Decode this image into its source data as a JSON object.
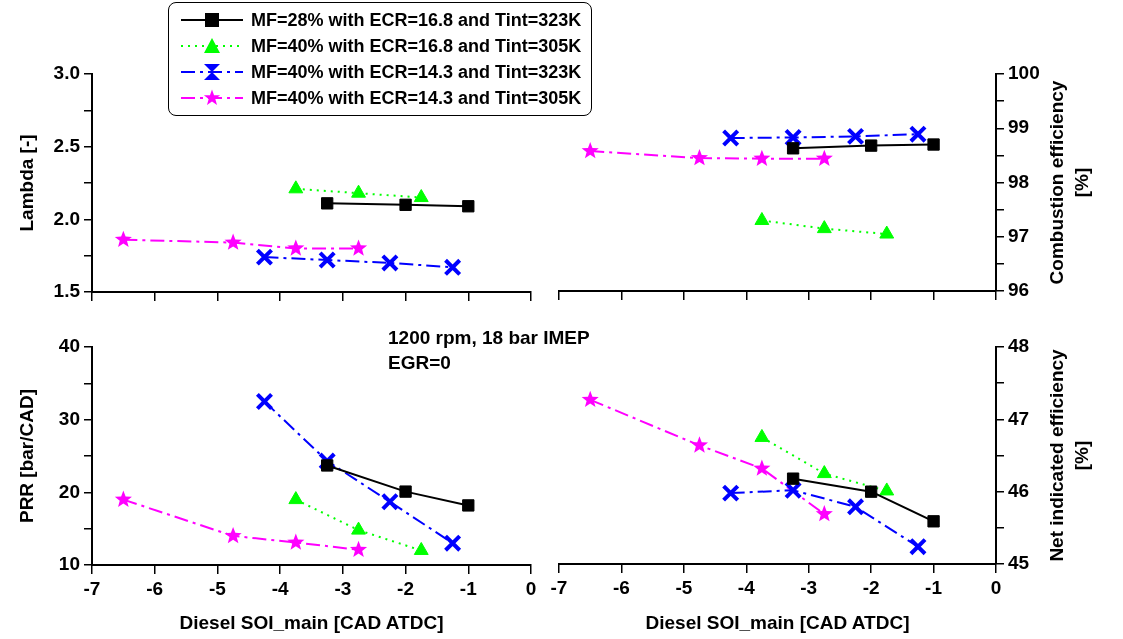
{
  "chart_data": [
    {
      "type": "line",
      "ylabel": "Lambda [-]",
      "xlim": [
        -7,
        0
      ],
      "xticks": [
        -7,
        -6,
        -5,
        -4,
        -3,
        -2,
        -1,
        0
      ],
      "ylim": [
        1.5,
        3.0
      ],
      "yticks": [
        1.5,
        {
          "value": 1.75,
          "label": null
        },
        {
          "value": 2,
          "label": "2.0"
        },
        {
          "value": 2.25,
          "label": null
        },
        2.5,
        {
          "value": 2.75,
          "label": null
        },
        {
          "value": 3,
          "label": "3.0"
        }
      ],
      "tick_labels": "y",
      "grid": false,
      "legend": "top",
      "series": [
        {
          "name": "MF=28% with ECR=16.8 and Tint=323K",
          "color": "#000000",
          "marker": "square",
          "line_style": "solid",
          "x": [
            -3.25,
            -2,
            -1
          ],
          "values": [
            2.11,
            2.1,
            2.09
          ]
        },
        {
          "name": "MF=40% with ECR=16.8 and Tint=305K",
          "color": "#00ff00",
          "marker": "triangle",
          "line_style": "dotted",
          "x": [
            -3.75,
            -2.75,
            -1.75
          ],
          "values": [
            2.21,
            2.18,
            2.15
          ]
        },
        {
          "name": "MF=40% with ECR=14.3 and Tint=323K",
          "color": "#0000ff",
          "marker": "cross",
          "line_style": "dashed",
          "x": [
            -4.25,
            -3.25,
            -2.25,
            -1.25
          ],
          "values": [
            1.74,
            1.72,
            1.7,
            1.67
          ]
        },
        {
          "name": "MF=40% with ECR=14.3 and Tint=305K",
          "color": "#ff00ff",
          "marker": "star",
          "line_style": "dashed",
          "x": [
            -6.5,
            -4.75,
            -3.75,
            -2.75
          ],
          "values": [
            1.86,
            1.84,
            1.8,
            1.8
          ]
        }
      ]
    },
    {
      "type": "line",
      "ylabel": "Combustion efficiency\n[%]",
      "xlim": [
        -7,
        0
      ],
      "xticks": [
        -7,
        -6,
        -5,
        -4,
        -3,
        -2,
        -1,
        0
      ],
      "ylim": [
        96,
        100
      ],
      "yticks": [
        96,
        {
          "value": 96.5,
          "label": null
        },
        97,
        {
          "value": 97.5,
          "label": null
        },
        98,
        {
          "value": 98.5,
          "label": null
        },
        99,
        {
          "value": 99.5,
          "label": null
        },
        100
      ],
      "tick_labels": "y",
      "grid": false,
      "series": [
        {
          "color": "#000000",
          "marker": "square",
          "line_style": "solid",
          "x": [
            -3.25,
            -2,
            -1
          ],
          "values": [
            98.63,
            98.68,
            98.7
          ]
        },
        {
          "color": "#00ff00",
          "marker": "triangle",
          "line_style": "dotted",
          "x": [
            -3.75,
            -2.75,
            -1.75
          ],
          "values": [
            97.3,
            97.15,
            97.05
          ]
        },
        {
          "color": "#0000ff",
          "marker": "cross",
          "line_style": "dashed",
          "x": [
            -4.25,
            -3.25,
            -2.25,
            -1.25
          ],
          "values": [
            98.82,
            98.83,
            98.85,
            98.89
          ]
        },
        {
          "color": "#ff00ff",
          "marker": "star",
          "line_style": "dashed",
          "x": [
            -6.5,
            -4.75,
            -3.75,
            -2.75
          ],
          "values": [
            98.58,
            98.45,
            98.44,
            98.44
          ]
        }
      ]
    },
    {
      "type": "line",
      "xlabel": "Diesel SOI_main [CAD ATDC]",
      "ylabel": "PRR [bar/CAD]",
      "annotations": [
        "1200 rpm, 18 bar IMEP",
        "EGR=0"
      ],
      "xlim": [
        -7,
        0
      ],
      "xticks": [
        -7,
        -6,
        -5,
        -4,
        -3,
        -2,
        -1,
        0
      ],
      "ylim": [
        10,
        40
      ],
      "yticks": [
        10,
        {
          "value": 15,
          "label": null
        },
        20,
        {
          "value": 25,
          "label": null
        },
        30,
        {
          "value": 35,
          "label": null
        },
        40
      ],
      "grid": false,
      "series": [
        {
          "color": "#000000",
          "marker": "square",
          "line_style": "solid",
          "x": [
            -3.25,
            -2,
            -1
          ],
          "values": [
            23.7,
            20.1,
            18.2
          ]
        },
        {
          "color": "#00ff00",
          "marker": "triangle",
          "line_style": "dotted",
          "x": [
            -3.75,
            -2.75,
            -1.75
          ],
          "values": [
            19.0,
            14.8,
            12.0
          ]
        },
        {
          "color": "#0000ff",
          "marker": "cross",
          "line_style": "dashed",
          "x": [
            -4.25,
            -3.25,
            -2.25,
            -1.25
          ],
          "values": [
            32.5,
            24.3,
            18.7,
            13.0
          ]
        },
        {
          "color": "#ff00ff",
          "marker": "star",
          "line_style": "dashed",
          "x": [
            -6.5,
            -4.75,
            -3.75,
            -2.75
          ],
          "values": [
            19.0,
            14.0,
            13.1,
            12.1
          ]
        }
      ]
    },
    {
      "type": "line",
      "xlabel": "Diesel SOI_main [CAD ATDC]",
      "ylabel": "Net indicated efficiency\n[%]",
      "xlim": [
        -7,
        0
      ],
      "xticks": [
        -7,
        -6,
        -5,
        -4,
        -3,
        -2,
        -1,
        0
      ],
      "ylim": [
        45,
        48
      ],
      "yticks": [
        45,
        {
          "value": 45.5,
          "label": null
        },
        46,
        {
          "value": 46.5,
          "label": null
        },
        47,
        {
          "value": 47.5,
          "label": null
        },
        48
      ],
      "grid": false,
      "series": [
        {
          "color": "#000000",
          "marker": "square",
          "line_style": "solid",
          "x": [
            -3.25,
            -2,
            -1
          ],
          "values": [
            46.18,
            46.0,
            45.59
          ]
        },
        {
          "color": "#00ff00",
          "marker": "triangle",
          "line_style": "dotted",
          "x": [
            -3.75,
            -2.75,
            -1.75
          ],
          "values": [
            46.75,
            46.25,
            46.01
          ]
        },
        {
          "color": "#0000ff",
          "marker": "cross",
          "line_style": "dashed",
          "x": [
            -4.25,
            -3.25,
            -2.25,
            -1.25
          ],
          "values": [
            45.98,
            46.02,
            45.79,
            45.24
          ]
        },
        {
          "color": "#ff00ff",
          "marker": "star",
          "line_style": "dashed",
          "x": [
            -6.5,
            -4.75,
            -3.75,
            -2.75
          ],
          "values": [
            47.27,
            46.64,
            46.32,
            45.69
          ]
        }
      ]
    }
  ]
}
